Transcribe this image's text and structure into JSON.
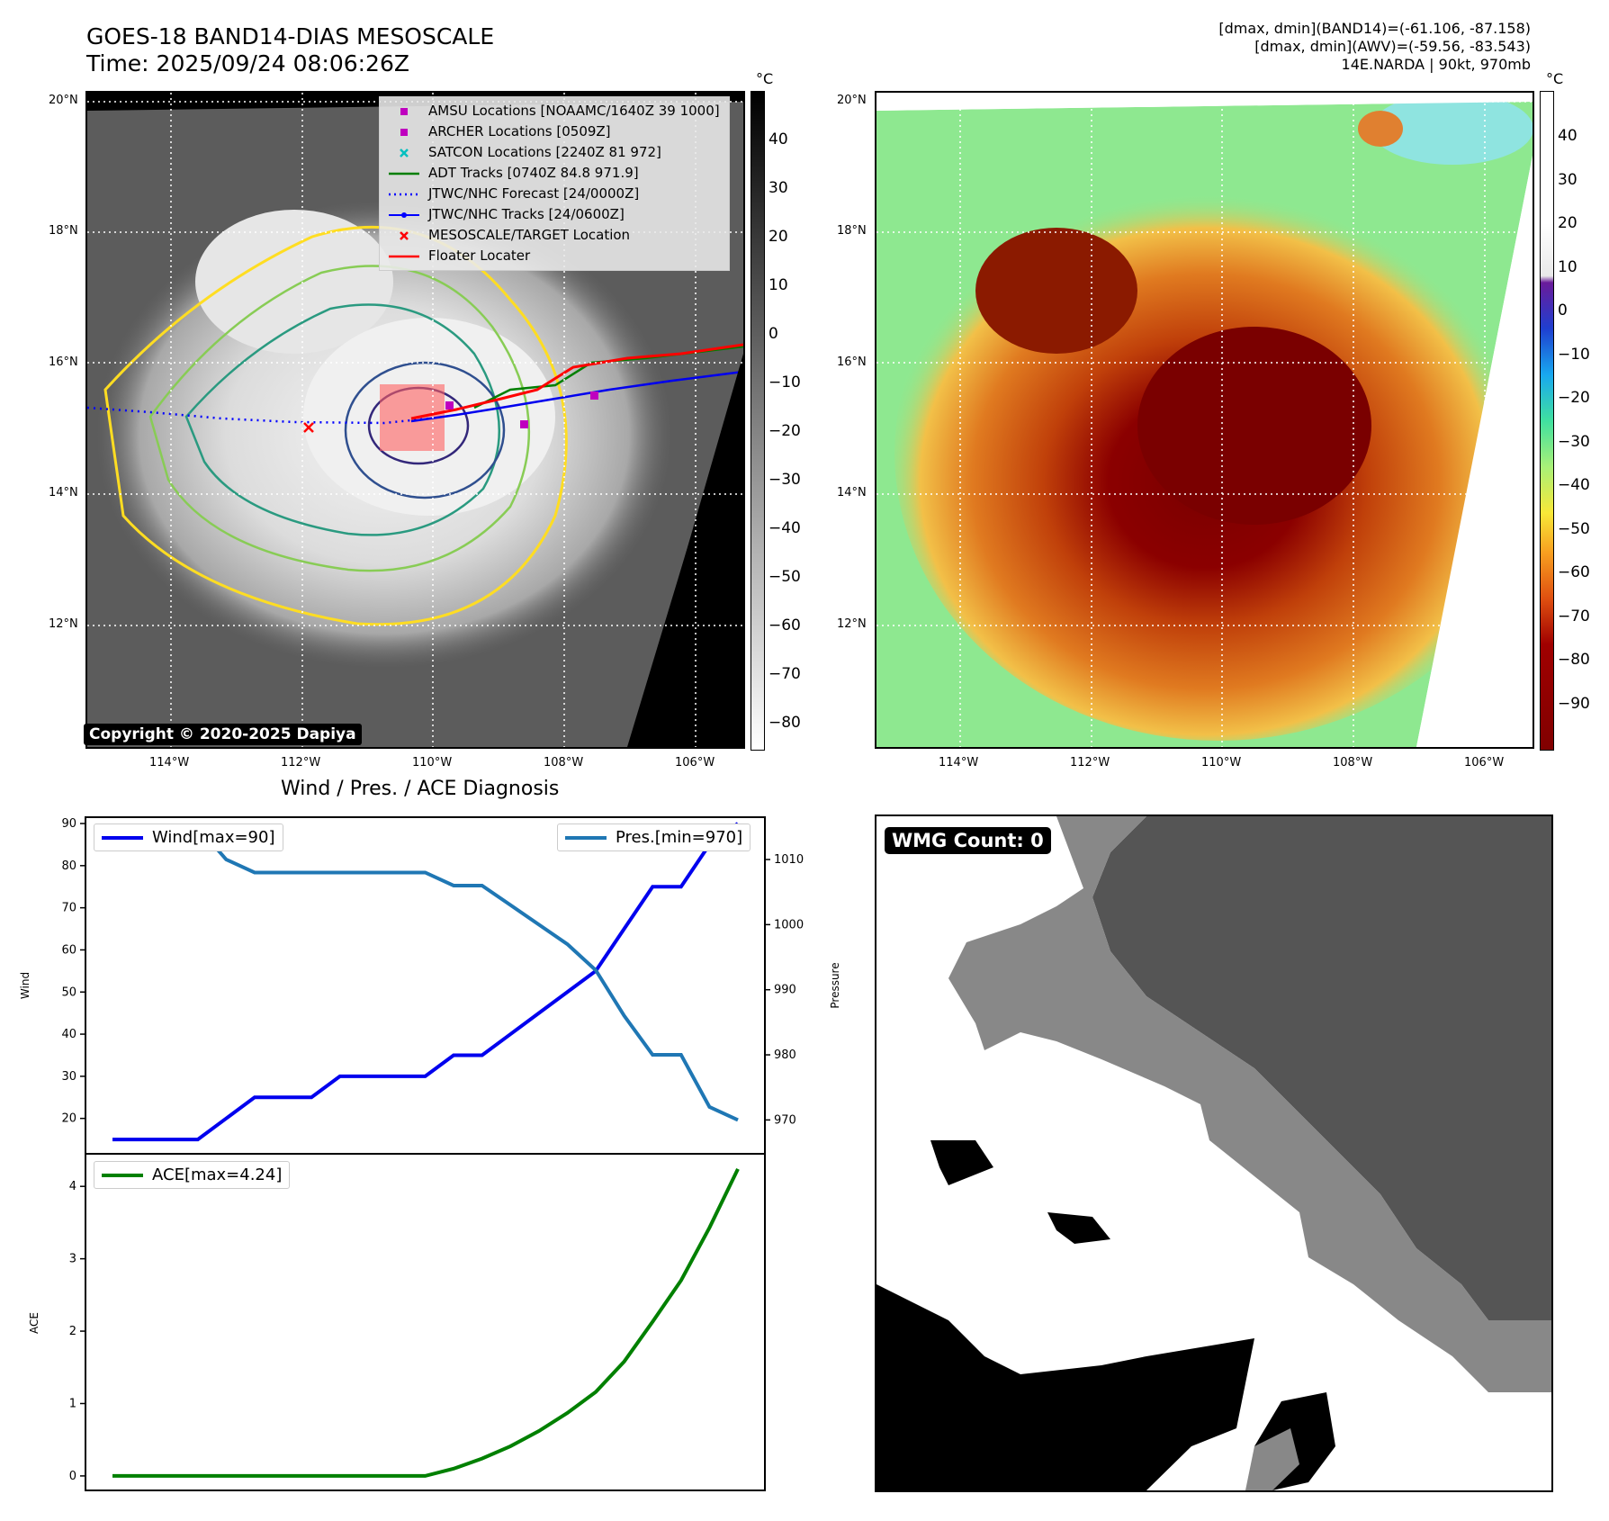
{
  "header": {
    "title_line1": "GOES-18 BAND14-DIAS MESOSCALE",
    "title_line2": "Time: 2025/09/24 08:06:26Z",
    "info_line1": "[dmax, dmin](BAND14)=(-61.106, -87.158)",
    "info_line2": "[dmax, dmin](AWV)=(-59.56, -83.543)",
    "info_line3": "14E.NARDA | 90kt, 970mb"
  },
  "map_axes": {
    "lat_labels": [
      "20°N",
      "18°N",
      "16°N",
      "14°N",
      "12°N"
    ],
    "lon_labels": [
      "114°W",
      "112°W",
      "110°W",
      "108°W",
      "106°W"
    ]
  },
  "colorbar_left": {
    "unit": "°C",
    "ticks": [
      "40",
      "30",
      "20",
      "10",
      "0",
      "−10",
      "−20",
      "−30",
      "−40",
      "−50",
      "−60",
      "−70",
      "−80"
    ],
    "range": [
      -85,
      50
    ]
  },
  "colorbar_right": {
    "unit": "°C",
    "ticks": [
      "40",
      "30",
      "20",
      "10",
      "0",
      "−10",
      "−20",
      "−30",
      "−40",
      "−50",
      "−60",
      "−70",
      "−80",
      "−90"
    ],
    "range": [
      -100,
      50
    ]
  },
  "legend": {
    "items": [
      {
        "label": "AMSU Locations [NOAAMC/1640Z 39 1000]",
        "symbol": "square",
        "color": "#bf00bf"
      },
      {
        "label": "ARCHER Locations [0509Z]",
        "symbol": "square",
        "color": "#bf00bf"
      },
      {
        "label": "SATCON Locations [2240Z 81 972]",
        "symbol": "x",
        "color": "#00bfbf"
      },
      {
        "label": "ADT Tracks [0740Z 84.8 971.9]",
        "symbol": "line",
        "color": "#007f00"
      },
      {
        "label": "JTWC/NHC Forecast [24/0000Z]",
        "symbol": "dotted",
        "color": "#0000ff"
      },
      {
        "label": "JTWC/NHC Tracks [24/0600Z]",
        "symbol": "dotline",
        "color": "#0000ff"
      },
      {
        "label": "MESOSCALE/TARGET Location",
        "symbol": "x",
        "color": "#ff0000"
      },
      {
        "label": "Floater Locater",
        "symbol": "line",
        "color": "#ff0000"
      }
    ]
  },
  "copyright": "Copyright © 2020-2025 Dapiya",
  "diagnosis": {
    "title": "Wind / Pres. / ACE Diagnosis",
    "wind_legend": "Wind[max=90]",
    "pres_legend": "Pres.[min=970]",
    "ace_legend": "ACE[max=4.24]",
    "wind_ylabel": "Wind",
    "pres_ylabel": "Pressure",
    "ace_ylabel": "ACE"
  },
  "wmg": {
    "label": "WMG Count: 0"
  },
  "chart_data": [
    {
      "type": "line",
      "title": "Wind / Pres. / ACE Diagnosis",
      "ylabel": "Wind",
      "y2label": "Pressure",
      "ylim": [
        11.6,
        91.5
      ],
      "y2lim": [
        964.8,
        1016.5
      ],
      "yticks": [
        20,
        30,
        40,
        50,
        60,
        70,
        80,
        90
      ],
      "y2ticks": [
        970,
        980,
        990,
        1000,
        1010
      ],
      "series": [
        {
          "name": "Wind[max=90]",
          "color": "#0000ee",
          "axis": "left",
          "values": [
            15,
            15,
            15,
            15,
            20,
            25,
            25,
            25,
            30,
            30,
            30,
            30,
            35,
            35,
            40,
            45,
            50,
            55,
            65,
            75,
            75,
            85,
            90
          ]
        },
        {
          "name": "Pres.[min=970]",
          "color": "#1f77b4",
          "axis": "right",
          "values": [
            1015,
            1015,
            1015,
            1015,
            1010,
            1008,
            1008,
            1008,
            1008,
            1008,
            1008,
            1008,
            1006,
            1006,
            1003,
            1000,
            997,
            993,
            986,
            980,
            980,
            972,
            970
          ]
        }
      ]
    },
    {
      "type": "line",
      "ylabel": "ACE",
      "ylim": [
        -0.2,
        4.45
      ],
      "yticks": [
        0,
        1,
        2,
        3,
        4
      ],
      "series": [
        {
          "name": "ACE[max=4.24]",
          "color": "#008000",
          "values": [
            0,
            0,
            0,
            0,
            0,
            0,
            0,
            0,
            0,
            0,
            0,
            0.0,
            0.1,
            0.24,
            0.41,
            0.62,
            0.87,
            1.16,
            1.58,
            2.13,
            2.7,
            3.43,
            4.24
          ]
        }
      ]
    }
  ]
}
